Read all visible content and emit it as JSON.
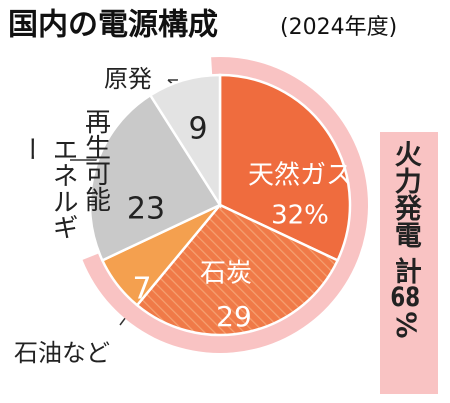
{
  "chart_data": {
    "type": "pie",
    "title": "国内の電源構成",
    "subtitle": "(2024年度)",
    "categories": [
      "天然ガス",
      "石炭",
      "石油など",
      "再生可能エネルギー",
      "原発"
    ],
    "values": [
      32,
      29,
      7,
      23,
      9
    ],
    "value_labels": [
      "32%",
      "29",
      "7",
      "23",
      "9"
    ],
    "colors": [
      "#ef6c3e",
      "#f07a48",
      "#f4a04f",
      "#c9c9c9",
      "#e3e3e3"
    ],
    "annotation": "火力発電 計68%",
    "annotation_color": "#f9c3c3"
  }
}
